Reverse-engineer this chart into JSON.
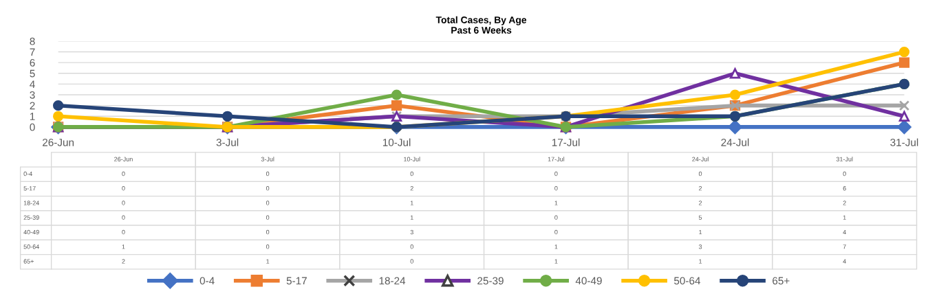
{
  "chart_data": {
    "type": "line",
    "title": "Total Cases, By Age",
    "subtitle": "Past 6 Weeks",
    "categories": [
      "26-Jun",
      "3-Jul",
      "10-Jul",
      "17-Jul",
      "24-Jul",
      "31-Jul"
    ],
    "series": [
      {
        "name": "0-4",
        "color": "#4472c4",
        "marker": "diamond",
        "values": [
          0,
          0,
          0,
          0,
          0,
          0
        ]
      },
      {
        "name": "5-17",
        "color": "#ed7d31",
        "marker": "square",
        "values": [
          0,
          0,
          2,
          0,
          2,
          6
        ]
      },
      {
        "name": "18-24",
        "color": "#a5a5a5",
        "marker": "cross",
        "values": [
          0,
          0,
          1,
          1,
          2,
          2
        ]
      },
      {
        "name": "25-39",
        "color": "#7030a0",
        "marker": "triangle",
        "values": [
          0,
          0,
          1,
          0,
          5,
          1
        ]
      },
      {
        "name": "40-49",
        "color": "#70ad47",
        "marker": "circle",
        "values": [
          0,
          0,
          3,
          0,
          1,
          4
        ]
      },
      {
        "name": "50-64",
        "color": "#ffc000",
        "marker": "circle",
        "values": [
          1,
          0,
          0,
          1,
          3,
          7
        ]
      },
      {
        "name": "65+",
        "color": "#264478",
        "marker": "circle",
        "values": [
          2,
          1,
          0,
          1,
          1,
          4
        ]
      }
    ],
    "ylim": [
      0,
      8
    ],
    "yticks": [
      0,
      1,
      2,
      3,
      4,
      5,
      6,
      7,
      8
    ],
    "grid": "y",
    "legend": "bottom",
    "data_labels": true,
    "line_style": "solid"
  }
}
